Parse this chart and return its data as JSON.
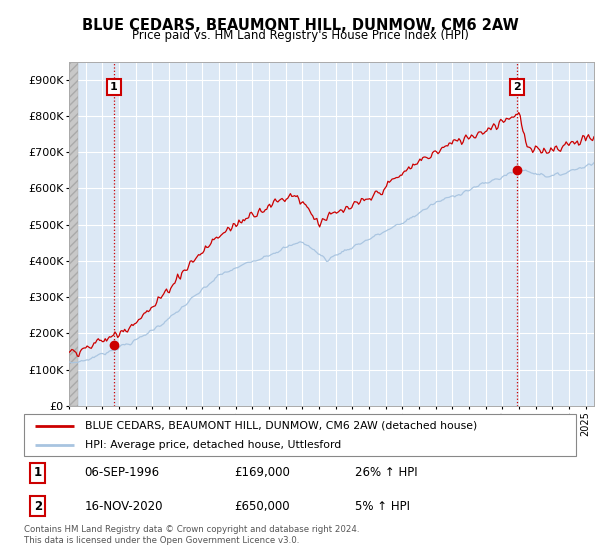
{
  "title": "BLUE CEDARS, BEAUMONT HILL, DUNMOW, CM6 2AW",
  "subtitle": "Price paid vs. HM Land Registry's House Price Index (HPI)",
  "ylim": [
    0,
    950000
  ],
  "yticks": [
    0,
    100000,
    200000,
    300000,
    400000,
    500000,
    600000,
    700000,
    800000,
    900000
  ],
  "ytick_labels": [
    "£0",
    "£100K",
    "£200K",
    "£300K",
    "£400K",
    "£500K",
    "£600K",
    "£700K",
    "£800K",
    "£900K"
  ],
  "hpi_color": "#a8c4e0",
  "price_color": "#cc0000",
  "background_color": "#dce8f5",
  "grid_color": "#ffffff",
  "ann1_x": 1996.7,
  "ann1_y": 169000,
  "ann2_x": 2020.88,
  "ann2_y": 650000,
  "annotation1": {
    "date_str": "06-SEP-1996",
    "price_str": "£169,000",
    "hpi_str": "26% ↑ HPI"
  },
  "annotation2": {
    "date_str": "16-NOV-2020",
    "price_str": "£650,000",
    "hpi_str": "5% ↑ HPI"
  },
  "legend_line1": "BLUE CEDARS, BEAUMONT HILL, DUNMOW, CM6 2AW (detached house)",
  "legend_line2": "HPI: Average price, detached house, Uttlesford",
  "footer": "Contains HM Land Registry data © Crown copyright and database right 2024.\nThis data is licensed under the Open Government Licence v3.0.",
  "xlim_start": 1994.0,
  "xlim_end": 2025.5
}
